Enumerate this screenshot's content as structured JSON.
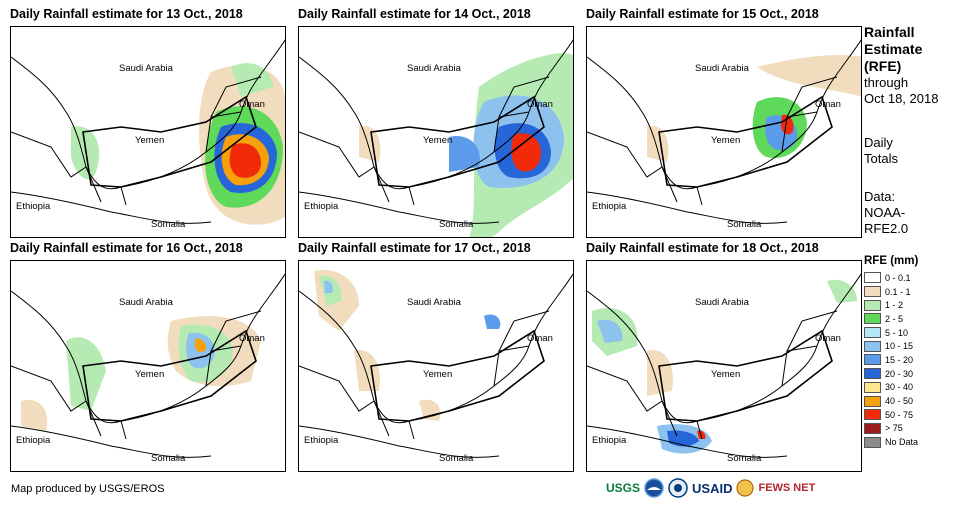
{
  "panels": [
    {
      "title": "Daily Rainfall estimate for 13 Oct., 2018",
      "rain_level": "heavy-east"
    },
    {
      "title": "Daily Rainfall estimate for 14 Oct., 2018",
      "rain_level": "heavy-central"
    },
    {
      "title": "Daily Rainfall estimate for 15 Oct., 2018",
      "rain_level": "moderate"
    },
    {
      "title": "Daily Rainfall estimate for 16 Oct., 2018",
      "rain_level": "light-moderate"
    },
    {
      "title": "Daily Rainfall estimate for 17 Oct., 2018",
      "rain_level": "light"
    },
    {
      "title": "Daily Rainfall estimate for 18 Oct., 2018",
      "rain_level": "light-south"
    }
  ],
  "map_labels": {
    "saudi_arabia": "Saudi Arabia",
    "oman": "Oman",
    "yemen": "Yemen",
    "ethiopia": "Ethiopia",
    "somalia": "Somalia"
  },
  "side": {
    "title_line1": "Rainfall",
    "title_line2": "Estimate",
    "title_line3": "(RFE)",
    "through": "through",
    "date": "Oct 18, 2018",
    "daily_line1": "Daily",
    "daily_line2": "Totals",
    "data_label": "Data:",
    "data_line2": "NOAA-",
    "data_line3": "RFE2.0"
  },
  "legend": {
    "title": "RFE (mm)",
    "items": [
      {
        "label": "0 - 0.1",
        "color": "#ffffff"
      },
      {
        "label": "0.1 - 1",
        "color": "#f1dcbe"
      },
      {
        "label": "1 - 2",
        "color": "#b5ebb3"
      },
      {
        "label": "2 - 5",
        "color": "#5fd95a"
      },
      {
        "label": "5 - 10",
        "color": "#b4e7f5"
      },
      {
        "label": "10 - 15",
        "color": "#8ec2ee"
      },
      {
        "label": "15 - 20",
        "color": "#5b9bea"
      },
      {
        "label": "20 - 30",
        "color": "#2766d8"
      },
      {
        "label": "30 - 40",
        "color": "#fde68c"
      },
      {
        "label": "40 - 50",
        "color": "#f6a10b"
      },
      {
        "label": "50 - 75",
        "color": "#f12a0a"
      },
      {
        "label": "> 75",
        "color": "#9e1b1b"
      },
      {
        "label": "No Data",
        "color": "#8c8c8c"
      }
    ]
  },
  "footer": "Map produced by USGS/EROS",
  "logos": {
    "usgs": "USGS",
    "usaid": "USAID",
    "fewsnet": "FEWS NET"
  }
}
